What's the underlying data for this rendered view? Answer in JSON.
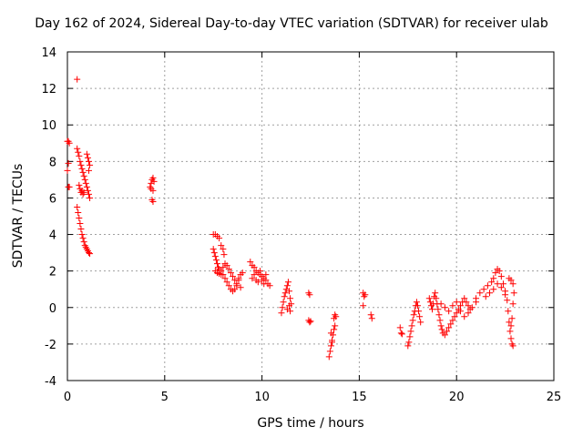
{
  "chart_data": {
    "type": "scatter",
    "title": "Day 162 of 2024, Sidereal Day-to-day VTEC variation (SDTVAR) for receiver ulab",
    "xlabel": "GPS time / hours",
    "ylabel": "SDTVAR / TECUs",
    "xlim": [
      0,
      25
    ],
    "ylim": [
      -4,
      14
    ],
    "xticks": [
      0,
      5,
      10,
      15,
      20,
      25
    ],
    "yticks": [
      -4,
      -2,
      0,
      2,
      4,
      6,
      8,
      10,
      12,
      14
    ],
    "grid": true,
    "marker": "+",
    "color": "#ff0000",
    "series": [
      {
        "name": "SDTVAR",
        "points": [
          [
            0.0,
            9.1
          ],
          [
            0.05,
            9.1
          ],
          [
            0.1,
            9.0
          ],
          [
            0.05,
            7.9
          ],
          [
            0.0,
            7.5
          ],
          [
            0.05,
            6.6
          ],
          [
            0.1,
            6.6
          ],
          [
            0.5,
            12.5
          ],
          [
            0.5,
            8.7
          ],
          [
            0.55,
            8.5
          ],
          [
            0.6,
            8.3
          ],
          [
            0.65,
            8.0
          ],
          [
            0.7,
            7.8
          ],
          [
            0.75,
            7.6
          ],
          [
            0.8,
            7.4
          ],
          [
            0.85,
            7.2
          ],
          [
            0.9,
            7.0
          ],
          [
            0.95,
            6.8
          ],
          [
            1.0,
            6.6
          ],
          [
            1.05,
            6.4
          ],
          [
            1.1,
            6.2
          ],
          [
            1.15,
            6.0
          ],
          [
            1.0,
            8.4
          ],
          [
            1.05,
            8.2
          ],
          [
            1.1,
            8.0
          ],
          [
            1.15,
            7.8
          ],
          [
            1.1,
            7.5
          ],
          [
            0.6,
            6.7
          ],
          [
            0.65,
            6.5
          ],
          [
            0.7,
            6.3
          ],
          [
            0.75,
            6.4
          ],
          [
            0.8,
            6.2
          ],
          [
            0.85,
            6.3
          ],
          [
            0.5,
            5.5
          ],
          [
            0.55,
            5.2
          ],
          [
            0.6,
            4.9
          ],
          [
            0.65,
            4.6
          ],
          [
            0.7,
            4.3
          ],
          [
            0.75,
            4.0
          ],
          [
            0.8,
            3.8
          ],
          [
            0.85,
            3.6
          ],
          [
            0.9,
            3.4
          ],
          [
            0.95,
            3.3
          ],
          [
            1.0,
            3.2
          ],
          [
            1.05,
            3.1
          ],
          [
            1.1,
            3.0
          ],
          [
            1.15,
            2.95
          ],
          [
            4.25,
            6.6
          ],
          [
            4.3,
            6.8
          ],
          [
            4.35,
            7.0
          ],
          [
            4.4,
            7.1
          ],
          [
            4.45,
            6.9
          ],
          [
            4.3,
            6.5
          ],
          [
            4.4,
            6.4
          ],
          [
            4.35,
            5.9
          ],
          [
            4.4,
            5.8
          ],
          [
            7.5,
            4.0
          ],
          [
            7.6,
            4.0
          ],
          [
            7.7,
            3.9
          ],
          [
            7.8,
            3.8
          ],
          [
            7.5,
            3.2
          ],
          [
            7.55,
            3.0
          ],
          [
            7.6,
            2.8
          ],
          [
            7.65,
            2.6
          ],
          [
            7.7,
            2.4
          ],
          [
            7.75,
            2.2
          ],
          [
            7.8,
            2.1
          ],
          [
            7.9,
            2.0
          ],
          [
            8.0,
            1.8
          ],
          [
            8.1,
            1.6
          ],
          [
            8.2,
            1.4
          ],
          [
            8.3,
            1.2
          ],
          [
            8.4,
            1.0
          ],
          [
            8.5,
            0.9
          ],
          [
            8.6,
            1.0
          ],
          [
            8.7,
            1.2
          ],
          [
            8.8,
            1.5
          ],
          [
            8.9,
            1.8
          ],
          [
            9.0,
            1.9
          ],
          [
            7.9,
            3.4
          ],
          [
            8.0,
            3.2
          ],
          [
            8.05,
            2.9
          ],
          [
            7.6,
            2.0
          ],
          [
            7.7,
            1.9
          ],
          [
            7.8,
            1.85
          ],
          [
            7.9,
            1.8
          ],
          [
            8.0,
            2.2
          ],
          [
            8.1,
            2.4
          ],
          [
            8.2,
            2.3
          ],
          [
            8.3,
            2.1
          ],
          [
            8.4,
            1.9
          ],
          [
            8.5,
            1.7
          ],
          [
            8.6,
            1.5
          ],
          [
            8.7,
            1.3
          ],
          [
            8.8,
            1.6
          ],
          [
            8.9,
            1.1
          ],
          [
            9.4,
            2.5
          ],
          [
            9.5,
            2.3
          ],
          [
            9.6,
            2.2
          ],
          [
            9.7,
            2.0
          ],
          [
            9.8,
            1.9
          ],
          [
            9.9,
            1.8
          ],
          [
            10.0,
            1.7
          ],
          [
            10.1,
            1.6
          ],
          [
            10.2,
            1.5
          ],
          [
            10.3,
            1.3
          ],
          [
            10.4,
            1.2
          ],
          [
            9.5,
            1.6
          ],
          [
            9.6,
            1.8
          ],
          [
            9.7,
            1.5
          ],
          [
            9.8,
            1.4
          ],
          [
            9.9,
            2.0
          ],
          [
            10.0,
            1.5
          ],
          [
            10.1,
            1.3
          ],
          [
            10.2,
            1.8
          ],
          [
            11.0,
            -0.3
          ],
          [
            11.05,
            0.0
          ],
          [
            11.1,
            0.3
          ],
          [
            11.15,
            0.6
          ],
          [
            11.2,
            0.8
          ],
          [
            11.25,
            1.0
          ],
          [
            11.3,
            1.2
          ],
          [
            11.35,
            1.4
          ],
          [
            11.4,
            0.9
          ],
          [
            11.45,
            0.5
          ],
          [
            11.5,
            0.2
          ],
          [
            11.45,
            -0.2
          ],
          [
            11.4,
            0.1
          ],
          [
            11.3,
            -0.1
          ],
          [
            12.4,
            0.8
          ],
          [
            12.45,
            0.7
          ],
          [
            12.4,
            -0.7
          ],
          [
            12.45,
            -0.8
          ],
          [
            12.5,
            -0.75
          ],
          [
            13.45,
            -2.7
          ],
          [
            13.5,
            -2.4
          ],
          [
            13.55,
            -2.1
          ],
          [
            13.6,
            -1.8
          ],
          [
            13.65,
            -1.5
          ],
          [
            13.7,
            -1.2
          ],
          [
            13.75,
            -1.0
          ],
          [
            13.7,
            -0.6
          ],
          [
            13.75,
            -0.4
          ],
          [
            13.8,
            -0.5
          ],
          [
            13.6,
            -1.9
          ],
          [
            13.55,
            -1.4
          ],
          [
            15.2,
            0.8
          ],
          [
            15.25,
            0.6
          ],
          [
            15.3,
            0.7
          ],
          [
            15.2,
            0.1
          ],
          [
            15.6,
            -0.4
          ],
          [
            15.65,
            -0.6
          ],
          [
            17.1,
            -1.1
          ],
          [
            17.15,
            -1.4
          ],
          [
            17.2,
            -1.45
          ],
          [
            17.5,
            -2.1
          ],
          [
            17.55,
            -1.9
          ],
          [
            17.6,
            -1.6
          ],
          [
            17.65,
            -1.3
          ],
          [
            17.7,
            -1.0
          ],
          [
            17.75,
            -0.7
          ],
          [
            17.8,
            -0.4
          ],
          [
            17.85,
            -0.2
          ],
          [
            17.9,
            0.1
          ],
          [
            17.95,
            0.3
          ],
          [
            18.0,
            0.1
          ],
          [
            18.05,
            -0.2
          ],
          [
            18.1,
            -0.5
          ],
          [
            18.15,
            -0.8
          ],
          [
            18.6,
            0.5
          ],
          [
            18.65,
            0.3
          ],
          [
            18.7,
            0.1
          ],
          [
            18.75,
            -0.1
          ],
          [
            18.8,
            0.2
          ],
          [
            18.85,
            0.6
          ],
          [
            18.9,
            0.8
          ],
          [
            18.95,
            0.5
          ],
          [
            19.0,
            0.2
          ],
          [
            19.05,
            -0.1
          ],
          [
            19.1,
            -0.4
          ],
          [
            19.15,
            -0.7
          ],
          [
            19.2,
            -1.0
          ],
          [
            19.25,
            -1.2
          ],
          [
            19.3,
            -1.4
          ],
          [
            19.4,
            -1.5
          ],
          [
            19.5,
            -1.3
          ],
          [
            19.6,
            -1.1
          ],
          [
            19.7,
            -0.9
          ],
          [
            19.8,
            -0.7
          ],
          [
            19.9,
            -0.5
          ],
          [
            20.0,
            -0.3
          ],
          [
            20.1,
            -0.1
          ],
          [
            20.2,
            0.1
          ],
          [
            20.3,
            0.3
          ],
          [
            20.4,
            0.5
          ],
          [
            20.5,
            0.3
          ],
          [
            20.6,
            0.1
          ],
          [
            20.7,
            -0.1
          ],
          [
            19.2,
            0.2
          ],
          [
            19.4,
            0.0
          ],
          [
            19.6,
            -0.2
          ],
          [
            19.8,
            0.1
          ],
          [
            20.0,
            0.3
          ],
          [
            20.2,
            -0.2
          ],
          [
            20.4,
            -0.5
          ],
          [
            20.6,
            -0.3
          ],
          [
            20.8,
            0.0
          ],
          [
            21.0,
            0.3
          ],
          [
            21.0,
            0.5
          ],
          [
            21.2,
            0.8
          ],
          [
            21.4,
            1.0
          ],
          [
            21.6,
            1.2
          ],
          [
            21.8,
            1.4
          ],
          [
            21.9,
            1.6
          ],
          [
            22.0,
            1.9
          ],
          [
            22.1,
            2.1
          ],
          [
            22.2,
            2.0
          ],
          [
            22.3,
            1.7
          ],
          [
            22.4,
            1.3
          ],
          [
            22.5,
            0.9
          ],
          [
            22.6,
            0.4
          ],
          [
            22.65,
            -0.2
          ],
          [
            22.7,
            -0.8
          ],
          [
            22.75,
            -1.3
          ],
          [
            22.8,
            -1.7
          ],
          [
            22.85,
            -2.0
          ],
          [
            22.9,
            -2.1
          ],
          [
            21.5,
            0.6
          ],
          [
            21.7,
            0.8
          ],
          [
            21.9,
            1.0
          ],
          [
            22.1,
            1.3
          ],
          [
            22.3,
            1.1
          ],
          [
            22.5,
            0.7
          ],
          [
            22.7,
            1.6
          ],
          [
            22.8,
            1.5
          ],
          [
            22.9,
            1.3
          ],
          [
            22.95,
            0.8
          ],
          [
            22.9,
            0.2
          ],
          [
            22.85,
            -0.6
          ],
          [
            22.8,
            -1.0
          ]
        ]
      }
    ]
  }
}
